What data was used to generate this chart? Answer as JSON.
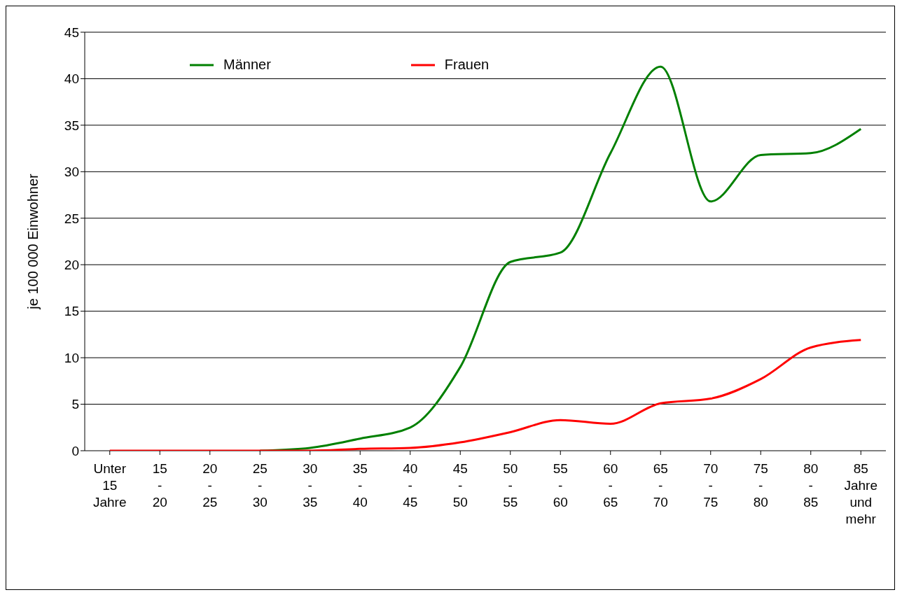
{
  "chart_data": {
    "type": "line",
    "ylabel": "je 100 000 Einwohner",
    "categories": [
      "Unter\n15\nJahre",
      "15\n-\n20",
      "20\n-\n25",
      "25\n-\n30",
      "30\n-\n35",
      "35\n-\n40",
      "40\n-\n45",
      "45\n-\n50",
      "50\n-\n55",
      "55\n-\n60",
      "60\n-\n65",
      "65\n-\n70",
      "70\n-\n75",
      "75\n-\n80",
      "80\n-\n85",
      "85\nJahre\nund\nmehr"
    ],
    "series": [
      {
        "name": "Männer",
        "color": "#008000",
        "values": [
          null,
          null,
          null,
          0,
          0.3,
          1.3,
          2.5,
          9,
          20.3,
          21.3,
          32,
          41.3,
          26.8,
          31.8,
          32,
          34.6
        ]
      },
      {
        "name": "Frauen",
        "color": "#ff0000",
        "values": [
          0,
          0,
          0,
          0,
          0,
          0.2,
          0.3,
          0.9,
          2,
          3.3,
          2.9,
          5.1,
          5.6,
          7.7,
          11.1,
          11.9
        ]
      }
    ],
    "ylim": [
      0,
      45
    ],
    "yticks": [
      0,
      5,
      10,
      15,
      20,
      25,
      30,
      35,
      40,
      45
    ],
    "grid": "y",
    "legend": "top left",
    "marker": "none",
    "line_style": "solid"
  }
}
